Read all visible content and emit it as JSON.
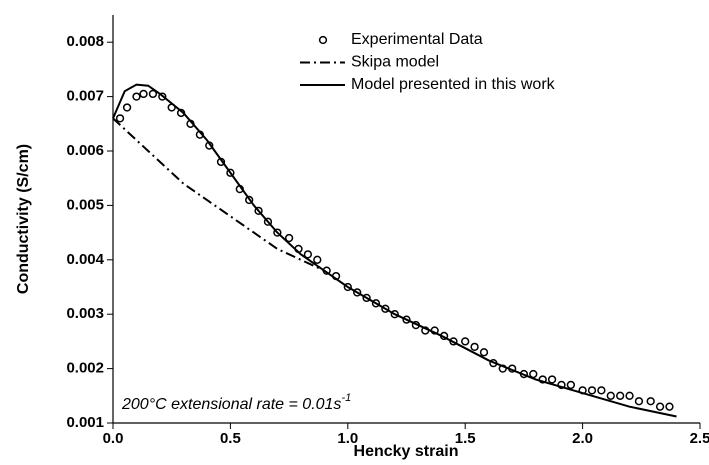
{
  "chart_data": {
    "type": "line",
    "xlabel": "Hencky strain",
    "ylabel": "Conductivity (S/cm)",
    "annotation": {
      "text": "200°C extensional rate = 0.01s",
      "superscript": "-1"
    },
    "xlim": [
      0,
      2.5
    ],
    "ylim": [
      0.001,
      0.0085
    ],
    "xticks": [
      {
        "value": 0,
        "label": "0.0"
      },
      0.5,
      {
        "value": 1,
        "label": "1.0"
      },
      1.5,
      {
        "value": 2,
        "label": "2.0"
      },
      2.5
    ],
    "yticks": [
      0.001,
      0.002,
      0.003,
      0.004,
      0.005,
      0.006,
      0.007,
      0.008
    ],
    "legend": "upper-right",
    "series": [
      {
        "name": "Experimental Data",
        "color": "#000000",
        "style": "markers",
        "x": [
          0.03,
          0.06,
          0.1,
          0.13,
          0.17,
          0.21,
          0.25,
          0.29,
          0.33,
          0.37,
          0.41,
          0.46,
          0.5,
          0.54,
          0.58,
          0.62,
          0.66,
          0.7,
          0.75,
          0.79,
          0.83,
          0.87,
          0.91,
          0.95,
          1.0,
          1.04,
          1.08,
          1.12,
          1.16,
          1.2,
          1.25,
          1.29,
          1.33,
          1.37,
          1.41,
          1.45,
          1.5,
          1.54,
          1.58,
          1.62,
          1.66,
          1.7,
          1.75,
          1.79,
          1.83,
          1.87,
          1.91,
          1.95,
          2.0,
          2.04,
          2.08,
          2.12,
          2.16,
          2.2,
          2.24,
          2.29,
          2.33,
          2.37
        ],
        "values": [
          0.0066,
          0.0068,
          0.007,
          0.00705,
          0.00705,
          0.007,
          0.0068,
          0.0067,
          0.0065,
          0.0063,
          0.0061,
          0.0058,
          0.0056,
          0.0053,
          0.0051,
          0.0049,
          0.0047,
          0.0045,
          0.0044,
          0.0042,
          0.0041,
          0.004,
          0.0038,
          0.0037,
          0.0035,
          0.0034,
          0.0033,
          0.0032,
          0.0031,
          0.003,
          0.0029,
          0.0028,
          0.0027,
          0.0027,
          0.0026,
          0.0025,
          0.0025,
          0.0024,
          0.0023,
          0.0021,
          0.002,
          0.002,
          0.0019,
          0.0019,
          0.0018,
          0.0018,
          0.0017,
          0.0017,
          0.0016,
          0.0016,
          0.0016,
          0.0015,
          0.0015,
          0.0015,
          0.0014,
          0.0014,
          0.0013,
          0.0013
        ]
      },
      {
        "name": "Skipa model",
        "color": "#000000",
        "style": "dash-dot",
        "x": [
          0,
          0.1,
          0.2,
          0.3,
          0.4,
          0.5,
          0.6,
          0.7,
          0.8,
          0.9
        ],
        "values": [
          0.0066,
          0.0062,
          0.0058,
          0.0054,
          0.0051,
          0.0048,
          0.0045,
          0.0042,
          0.004,
          0.0038
        ]
      },
      {
        "name": "Model presented in this work",
        "color": "#000000",
        "style": "solid",
        "x": [
          0,
          0.05,
          0.1,
          0.15,
          0.2,
          0.3,
          0.4,
          0.5,
          0.6,
          0.7,
          0.8,
          0.9,
          1.0,
          1.2,
          1.4,
          1.6,
          1.8,
          2.0,
          2.2,
          2.4
        ],
        "values": [
          0.0066,
          0.0071,
          0.00722,
          0.0072,
          0.00705,
          0.0067,
          0.0062,
          0.0056,
          0.005,
          0.0045,
          0.0041,
          0.0038,
          0.0035,
          0.003,
          0.0026,
          0.00215,
          0.0018,
          0.00155,
          0.0013,
          0.00112
        ]
      }
    ]
  }
}
